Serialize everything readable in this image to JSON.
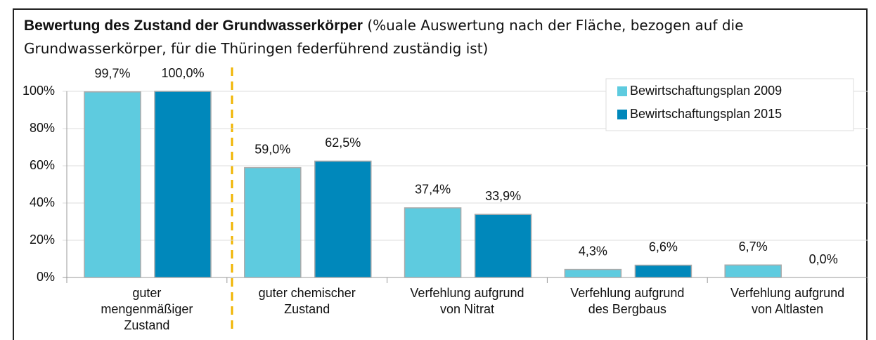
{
  "chart_data": {
    "type": "bar",
    "title": "Bewertung des Zustand der Grundwasserkörper",
    "subtitle": "(%uale Auswertung nach der Fläche, bezogen auf die Grundwasserkörper, für die Thüringen federführend zuständig ist)",
    "categories": [
      [
        "guter",
        "mengenmäßiger",
        "Zustand"
      ],
      [
        "guter chemischer",
        "Zustand"
      ],
      [
        "Verfehlung aufgrund",
        "von Nitrat"
      ],
      [
        "Verfehlung aufgrund",
        "des Bergbaus"
      ],
      [
        "Verfehlung aufgrund",
        "von Altlasten"
      ]
    ],
    "series": [
      {
        "name": "Bewirtschaftungsplan 2009",
        "color": "#5ecbdf",
        "values": [
          99.7,
          59.0,
          37.4,
          4.3,
          6.7
        ],
        "value_labels": [
          "99,7%",
          "59,0%",
          "37,4%",
          "4,3%",
          "6,7%"
        ]
      },
      {
        "name": "Bewirtschaftungsplan 2015",
        "color": "#0088bb",
        "values": [
          100.0,
          62.5,
          33.9,
          6.6,
          0.0
        ],
        "value_labels": [
          "100,0%",
          "62,5%",
          "33,9%",
          "6,6%",
          "0,0%"
        ]
      }
    ],
    "ylim": [
      0,
      100
    ],
    "yticks": [
      {
        "value": 0,
        "label": "0%"
      },
      {
        "value": 20,
        "label": "20%"
      },
      {
        "value": 40,
        "label": "40%"
      },
      {
        "value": 60,
        "label": "60%"
      },
      {
        "value": 80,
        "label": "80%"
      },
      {
        "value": 100,
        "label": "100%"
      }
    ],
    "grid": true,
    "legend": "top-right"
  }
}
